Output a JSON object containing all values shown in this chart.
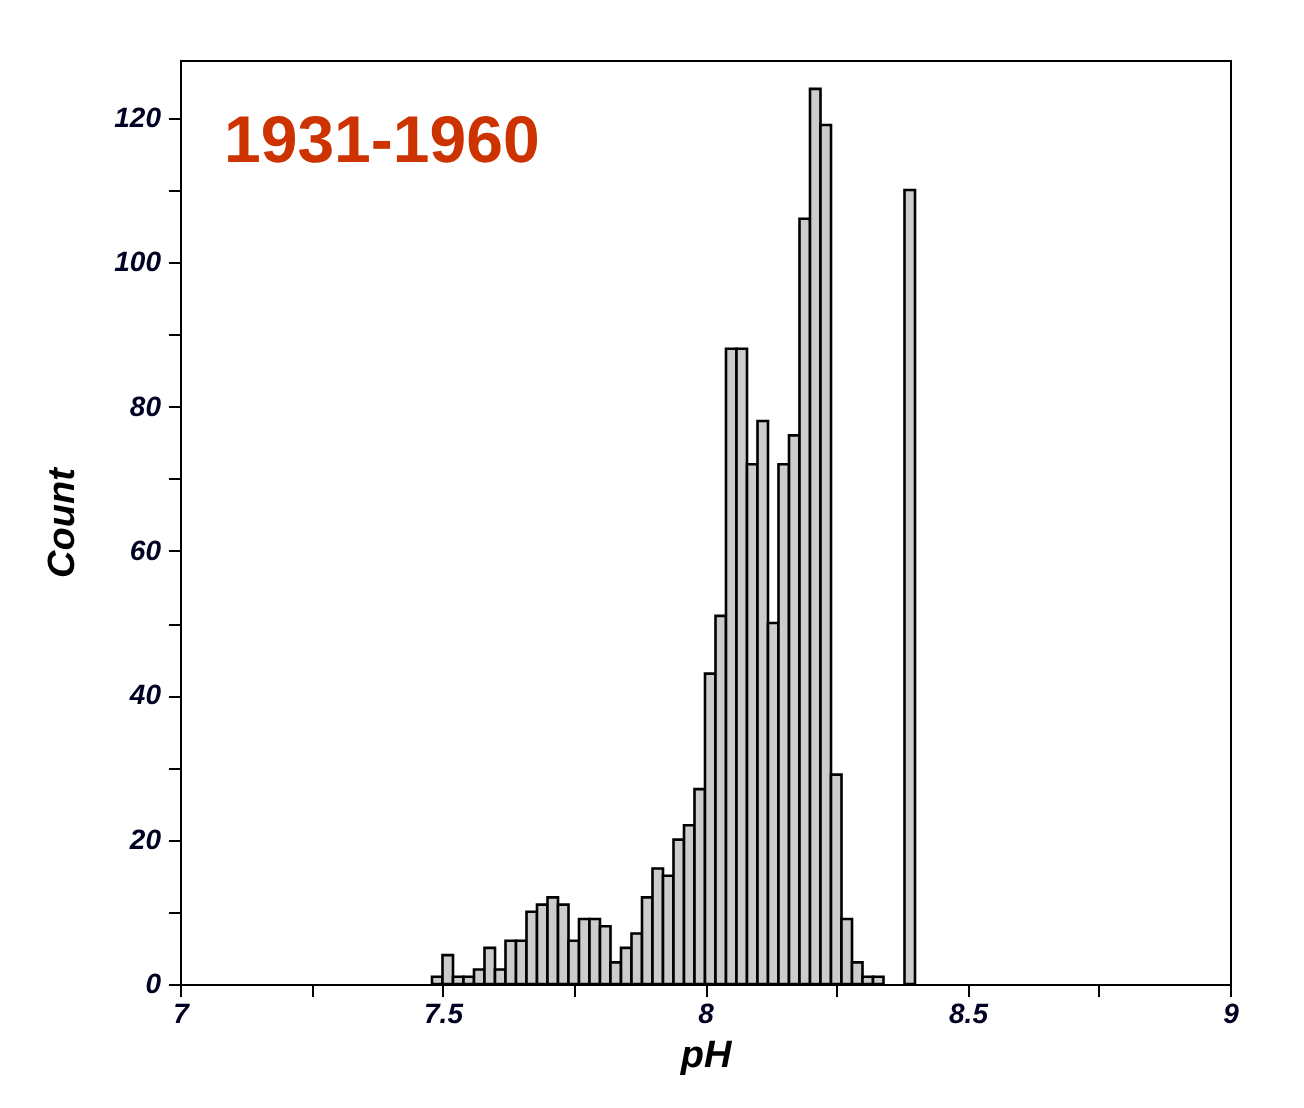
{
  "chart_data": {
    "type": "histogram",
    "title": "1931-1960",
    "xlabel": "pH",
    "ylabel": "Count",
    "bins": [
      7.48,
      7.5,
      7.52,
      7.54,
      7.56,
      7.58,
      7.6,
      7.62,
      7.64,
      7.66,
      7.68,
      7.7,
      7.72,
      7.74,
      7.76,
      7.78,
      7.8,
      7.82,
      7.84,
      7.86,
      7.88,
      7.9,
      7.92,
      7.94,
      7.96,
      7.98,
      8.0,
      8.02,
      8.04,
      8.06,
      8.08,
      8.1,
      8.12,
      8.14,
      8.16,
      8.18,
      8.2,
      8.22,
      8.24,
      8.26,
      8.28,
      8.3,
      8.32,
      8.34,
      8.36,
      8.38,
      8.4
    ],
    "values": [
      1,
      4,
      1,
      1,
      2,
      5,
      2,
      6,
      6,
      10,
      11,
      12,
      11,
      6,
      9,
      9,
      8,
      3,
      5,
      7,
      12,
      16,
      15,
      20,
      22,
      27,
      43,
      51,
      88,
      88,
      72,
      78,
      50,
      72,
      76,
      106,
      124,
      119,
      29,
      9,
      3,
      1,
      1,
      0,
      0,
      110
    ],
    "color": "#cccccc",
    "xlim": [
      7,
      9
    ],
    "xticks": [
      7,
      {
        "value": 7.25,
        "label": null
      },
      7.5,
      {
        "value": 7.75,
        "label": null
      },
      8,
      {
        "value": 8.25,
        "label": null
      },
      8.5,
      {
        "value": 8.75,
        "label": null
      },
      9
    ],
    "ylim": [
      0,
      128
    ],
    "yticks": [
      0,
      {
        "value": 10,
        "label": null
      },
      20,
      {
        "value": 30,
        "label": null
      },
      40,
      {
        "value": 50,
        "label": null
      },
      60,
      {
        "value": 70,
        "label": null
      },
      80,
      {
        "value": 90,
        "label": null
      },
      100,
      {
        "value": 110,
        "label": null
      },
      120
    ],
    "grid": false
  }
}
